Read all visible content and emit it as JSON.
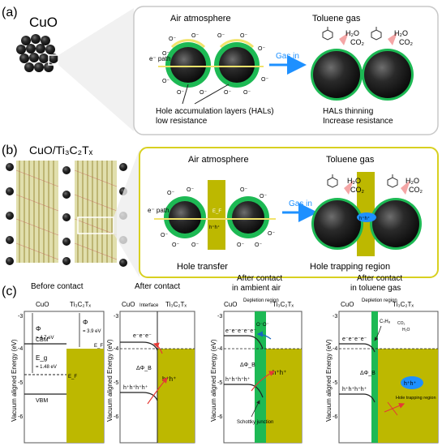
{
  "panel_a": {
    "label": "(a)",
    "material": "CuO",
    "air": {
      "title": "Air atmosphere",
      "epath": "e⁻ path",
      "hal_line1": "Hole accumulation layers (HALs)",
      "hal_line2": "low resistance"
    },
    "gas_in": "Gas in",
    "toluene": {
      "title": "Toluene gas",
      "h2o": "H₂O",
      "co2": "CO₂",
      "result_line1": "HALs thinning",
      "result_line2": "Increase resistance"
    },
    "oxygen_ion": "O⁻"
  },
  "panel_b": {
    "label": "(b)",
    "material": "CuO/Ti₃C₂Tₓ",
    "air": {
      "title": "Air atmosphere",
      "epath": "e⁻ path",
      "ef": "E_F",
      "holes": "h⁺h⁺",
      "caption": "Hole transfer"
    },
    "gas_in": "Gas in",
    "toluene": {
      "title": "Toluene gas",
      "h2o": "H₂O",
      "co2": "CO₂",
      "trap": "h⁺h⁺",
      "caption": "Hole trapping region"
    }
  },
  "panel_c": {
    "label": "(c)",
    "ylabel": "Vacuum aligned Energy (eV)",
    "yticks": [
      "-3",
      "-4",
      "-5",
      "-6"
    ],
    "subplots": [
      {
        "title_line1": "Before contact",
        "title_line2": "",
        "left": "CuO",
        "right": "Ti₃C₂Tₓ",
        "phi_cuo": "Φ",
        "phi_cuo_val": "= 4.7 eV",
        "phi_ti": "Φ",
        "phi_ti_val": "= 3.9 eV",
        "cbm": "CBM",
        "eg": "E_g",
        "eg_val": "= 1.48 eV",
        "ef": "E_F",
        "ef2": "E_F",
        "vbm": "VBM"
      },
      {
        "title_line1": "After contact",
        "title_line2": "",
        "left": "CuO",
        "interface": "Interface",
        "right": "Ti₃C₂Tₓ",
        "electrons": "e⁻e⁻e⁻",
        "holes": "h⁺h⁺h⁺h⁺",
        "holes2": "h⁺h⁺",
        "dphi": "ΔΦ_B"
      },
      {
        "title_line1": "After contact",
        "title_line2": "in ambient air",
        "left": "CuO",
        "depletion": "Depletion region",
        "right": "Ti₃C₂Tₓ",
        "electrons": "e⁻e⁻e⁻e⁻e⁻",
        "oxygens": "O⁻O⁻",
        "holes": "h⁺h⁺h⁺h⁺",
        "holes2": "h⁺h⁺",
        "dphi": "ΔΦ_B",
        "schottky": "Schottky junction"
      },
      {
        "title_line1": "After contact",
        "title_line2": "in toluene gas",
        "left": "CuO",
        "depletion": "Depletion region",
        "right": "Ti₃C₂Tₓ",
        "c7h8": "C₇H₈",
        "co2": "CO₂",
        "h2o": "H₂O",
        "electrons": "e⁻e⁻e⁻e⁻",
        "holes": "h⁺h⁺h⁺h⁺",
        "dphi": "ΔΦ_B",
        "trap_holes": "h⁺h⁺",
        "trap_label": "Hole trapping region"
      }
    ]
  },
  "colors": {
    "olive": "#bdb800",
    "green": "#1db954",
    "blue_arrow": "#1e90ff",
    "pink_arrow": "#f4a6a6",
    "yellow_arrow": "#f2e36b",
    "red_arrow": "#e53935",
    "box_border": "#c8c8c8",
    "yellow_border": "#d8d020"
  }
}
